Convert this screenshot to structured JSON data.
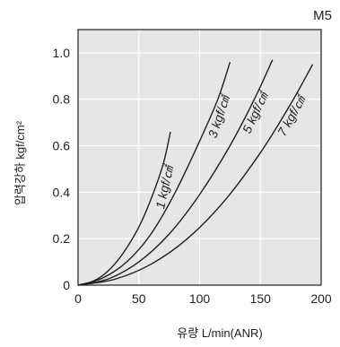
{
  "page": {
    "badge": "M5"
  },
  "chart_data": {
    "type": "line",
    "title": "",
    "xlabel": "유량 L/min(ANR)",
    "ylabel": "압력강하 kgf/cm²",
    "xlim": [
      0,
      200
    ],
    "ylim": [
      0,
      1.1
    ],
    "x_ticks": [
      0,
      50,
      100,
      150,
      200
    ],
    "x_tick_labels": [
      "0",
      "50",
      "100",
      "150",
      "200"
    ],
    "y_ticks": [
      0,
      0.2,
      0.4,
      0.6,
      0.8,
      1.0
    ],
    "y_tick_labels": [
      "0",
      "0.2",
      "0.4",
      "0.6",
      "0.8",
      "1.0"
    ],
    "grid": true,
    "legend": "none",
    "background_color": "#e6e6e6",
    "line_color": "#1f1f1f",
    "series": [
      {
        "name": "1 kgf/㎠",
        "x": [
          0,
          10,
          20,
          30,
          40,
          50,
          60,
          70,
          76
        ],
        "y": [
          0,
          0.012,
          0.04,
          0.09,
          0.16,
          0.25,
          0.37,
          0.52,
          0.66
        ]
      },
      {
        "name": "3 kgf/㎠",
        "x": [
          0,
          20,
          40,
          60,
          80,
          100,
          115,
          125
        ],
        "y": [
          0,
          0.03,
          0.1,
          0.22,
          0.4,
          0.62,
          0.8,
          0.96
        ]
      },
      {
        "name": "5 kgf/㎠",
        "x": [
          0,
          25,
          50,
          75,
          100,
          125,
          145,
          160
        ],
        "y": [
          0,
          0.027,
          0.1,
          0.22,
          0.39,
          0.6,
          0.8,
          0.97
        ]
      },
      {
        "name": "7 kgf/㎠",
        "x": [
          0,
          30,
          60,
          90,
          120,
          150,
          175,
          193
        ],
        "y": [
          0,
          0.025,
          0.09,
          0.2,
          0.36,
          0.57,
          0.78,
          0.95
        ]
      }
    ]
  }
}
